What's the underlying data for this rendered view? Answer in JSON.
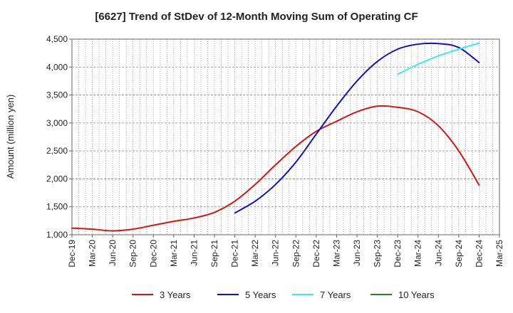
{
  "chart_data": {
    "type": "line",
    "title": "[6627]  Trend of StDev of 12-Month Moving Sum of Operating CF",
    "xlabel": "",
    "ylabel": "Amount (million yen)",
    "ylim": [
      1000,
      4500
    ],
    "yticks": [
      1000,
      1500,
      2000,
      2500,
      3000,
      3500,
      4000,
      4500
    ],
    "ytick_labels": [
      "1,000",
      "1,500",
      "2,000",
      "2,500",
      "3,000",
      "3,500",
      "4,000",
      "4,500"
    ],
    "x_categories": [
      "Dec-19",
      "Mar-20",
      "Jun-20",
      "Sep-20",
      "Dec-20",
      "Mar-21",
      "Jun-21",
      "Sep-21",
      "Dec-21",
      "Mar-22",
      "Jun-22",
      "Sep-22",
      "Dec-22",
      "Mar-23",
      "Jun-23",
      "Sep-23",
      "Dec-23",
      "Mar-24",
      "Jun-24",
      "Sep-24",
      "Dec-24",
      "Mar-25"
    ],
    "grid": true,
    "legend_position": "bottom",
    "series": [
      {
        "name": "3 Years",
        "color": "#dd1111",
        "points": [
          [
            "Dec-19",
            1120
          ],
          [
            "Mar-20",
            1100
          ],
          [
            "Jun-20",
            1070
          ],
          [
            "Sep-20",
            1100
          ],
          [
            "Dec-20",
            1170
          ],
          [
            "Mar-21",
            1240
          ],
          [
            "Jun-21",
            1300
          ],
          [
            "Sep-21",
            1400
          ],
          [
            "Dec-21",
            1600
          ],
          [
            "Mar-22",
            1900
          ],
          [
            "Jun-22",
            2250
          ],
          [
            "Sep-22",
            2580
          ],
          [
            "Dec-22",
            2850
          ],
          [
            "Mar-23",
            3030
          ],
          [
            "Jun-23",
            3200
          ],
          [
            "Sep-23",
            3300
          ],
          [
            "Dec-23",
            3280
          ],
          [
            "Mar-24",
            3200
          ],
          [
            "Jun-24",
            2950
          ],
          [
            "Sep-24",
            2500
          ],
          [
            "Dec-24",
            1890
          ]
        ]
      },
      {
        "name": "5 Years",
        "color": "#1111cc",
        "points": [
          [
            "Dec-21",
            1390
          ],
          [
            "Mar-22",
            1600
          ],
          [
            "Jun-22",
            1900
          ],
          [
            "Sep-22",
            2300
          ],
          [
            "Dec-22",
            2800
          ],
          [
            "Mar-23",
            3300
          ],
          [
            "Jun-23",
            3750
          ],
          [
            "Sep-23",
            4100
          ],
          [
            "Dec-23",
            4320
          ],
          [
            "Mar-24",
            4410
          ],
          [
            "Jun-24",
            4420
          ],
          [
            "Sep-24",
            4350
          ],
          [
            "Dec-24",
            4080
          ]
        ]
      },
      {
        "name": "7 Years",
        "color": "#33eeee",
        "points": [
          [
            "Dec-23",
            3870
          ],
          [
            "Mar-24",
            4050
          ],
          [
            "Jun-24",
            4200
          ],
          [
            "Sep-24",
            4320
          ],
          [
            "Dec-24",
            4430
          ]
        ]
      },
      {
        "name": "10 Years",
        "color": "#228822",
        "points": []
      }
    ]
  }
}
